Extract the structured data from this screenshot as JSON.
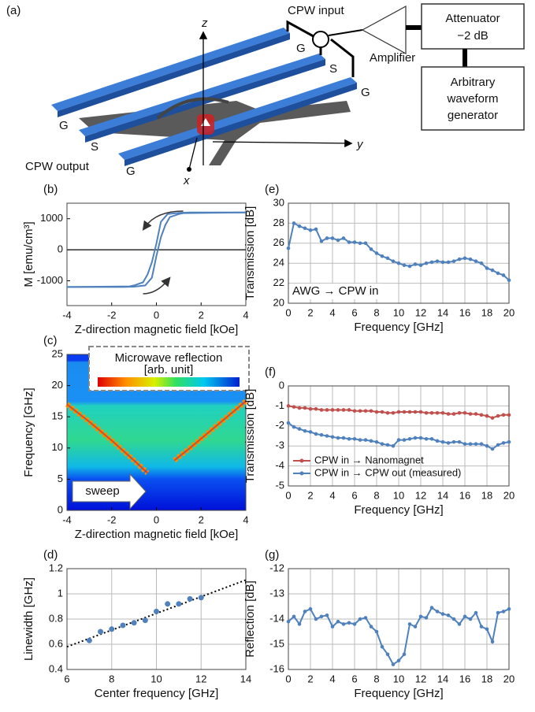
{
  "diagram": {
    "label": "(a)",
    "cpw_input": "CPW input",
    "attenuator": "Attenuator",
    "attenuation": "−2 dB",
    "amplifier": "Amplifier",
    "awg": [
      "Arbitrary",
      "waveform",
      "generator"
    ],
    "line_labels_right": [
      "G",
      "S",
      "G"
    ],
    "line_labels_left": [
      "G",
      "S",
      "G"
    ],
    "cpw_output": "CPW output",
    "axis_z": "z",
    "axis_y": "y",
    "axis_x": "x"
  },
  "chart_data": [
    {
      "label": "(b)",
      "type": "line",
      "xlabel": "Z-direction magnetic field  [kOe]",
      "ylabel": "M [emu/cm³]",
      "xlim": [
        -4,
        4
      ],
      "ylim": [
        -1800,
        1500
      ],
      "xticks": [
        -4,
        -2,
        0,
        2,
        4
      ],
      "yticks": [
        -1000,
        0,
        1000
      ],
      "grid": false,
      "markers": false,
      "series": [
        {
          "color": "#4f81bd",
          "x": [
            4,
            1.5,
            1,
            0.5,
            0.2,
            0,
            -0.2,
            -0.4,
            -0.6,
            -1,
            -1.2,
            -4
          ],
          "values": [
            1200,
            1200,
            1190,
            1150,
            900,
            200,
            -400,
            -800,
            -1050,
            -1150,
            -1180,
            -1200
          ]
        },
        {
          "color": "#4f81bd",
          "x": [
            -4,
            -1.5,
            -1,
            -0.5,
            -0.2,
            0,
            0.2,
            0.4,
            0.6,
            1,
            1.2,
            4
          ],
          "values": [
            -1200,
            -1200,
            -1190,
            -1150,
            -900,
            -200,
            400,
            800,
            1050,
            1150,
            1180,
            1200
          ]
        }
      ]
    },
    {
      "label": "(c)",
      "type": "heatmap",
      "xlabel": "Z-direction magnetic field  [kOe]",
      "ylabel": "Frequency [GHz]",
      "xlim": [
        -4,
        4
      ],
      "ylim": [
        0,
        25
      ],
      "xticks": [
        -4,
        -2,
        0,
        2,
        4
      ],
      "yticks": [
        0,
        5,
        10,
        15,
        20,
        25
      ],
      "colorbar_title": "Microwave reflection",
      "colorbar_unit": "[arb. unit]",
      "annotation": "sweep",
      "series": [
        {
          "color": "#ff8c00",
          "x": [
            -4,
            -3,
            -2,
            -1,
            -0.4
          ],
          "values": [
            17,
            14.2,
            11.2,
            8,
            6
          ]
        },
        {
          "color": "#ff8c00",
          "x": [
            0.8,
            1.5,
            2,
            3,
            4
          ],
          "values": [
            8,
            10,
            11.5,
            14.5,
            17.5
          ]
        }
      ]
    },
    {
      "label": "(d)",
      "type": "scatter",
      "xlabel": "Center frequency  [GHz]",
      "ylabel": "Linewidth [GHz]",
      "xlim": [
        6,
        14
      ],
      "ylim": [
        0.4,
        1.2
      ],
      "xticks": [
        6,
        8,
        10,
        12,
        14
      ],
      "yticks": [
        0.4,
        0.6,
        0.8,
        1,
        1.2
      ],
      "grid": true,
      "series": [
        {
          "color": "#4f81bd",
          "x": [
            7,
            7.5,
            8,
            8.5,
            9,
            9.5,
            10,
            10.5,
            11,
            11.5,
            12
          ],
          "values": [
            0.63,
            0.7,
            0.72,
            0.75,
            0.77,
            0.79,
            0.86,
            0.92,
            0.92,
            0.96,
            0.97
          ]
        }
      ],
      "fit": {
        "color": "#000000",
        "x": [
          6,
          14
        ],
        "values": [
          0.58,
          1.11
        ]
      }
    },
    {
      "label": "(e)",
      "type": "line",
      "xlabel": "Frequency [GHz]",
      "ylabel": "Transmission [dB]",
      "xlim": [
        0,
        20
      ],
      "ylim": [
        20,
        30
      ],
      "xticks": [
        0,
        2,
        4,
        6,
        8,
        10,
        12,
        14,
        16,
        18,
        20
      ],
      "yticks": [
        20,
        22,
        24,
        26,
        28,
        30
      ],
      "grid": true,
      "markers": true,
      "annotation": "AWG → CPW in",
      "x": [
        0,
        0.5,
        1,
        1.5,
        2,
        2.5,
        3,
        3.5,
        4,
        4.5,
        5,
        5.5,
        6,
        6.5,
        7,
        7.5,
        8,
        8.5,
        9,
        9.5,
        10,
        10.5,
        11,
        11.5,
        12,
        12.5,
        13,
        13.5,
        14,
        14.5,
        15,
        15.5,
        16,
        16.5,
        17,
        17.5,
        18,
        18.5,
        19,
        19.5,
        20
      ],
      "series": [
        {
          "color": "#4f81bd",
          "values": [
            25.5,
            28,
            27.7,
            27.5,
            27.3,
            27.4,
            26.2,
            26.5,
            26.5,
            26.3,
            26.5,
            26.1,
            26.1,
            26,
            26,
            25.4,
            25,
            24.7,
            24.5,
            24.2,
            24,
            23.8,
            23.7,
            23.9,
            23.8,
            24,
            24.1,
            24.2,
            24.1,
            24.1,
            24.2,
            24.4,
            24.5,
            24.4,
            24.2,
            24,
            23.5,
            23.3,
            23,
            22.8,
            22.3
          ]
        }
      ]
    },
    {
      "label": "(f)",
      "type": "line",
      "xlabel": "Frequency [GHz]",
      "ylabel": "Transmission [dB]",
      "xlim": [
        0,
        20
      ],
      "ylim": [
        -5,
        0
      ],
      "xticks": [
        0,
        2,
        4,
        6,
        8,
        10,
        12,
        14,
        16,
        18,
        20
      ],
      "yticks": [
        -5,
        -4,
        -3,
        -2,
        -1,
        0
      ],
      "grid": true,
      "markers": true,
      "legend": "lower left",
      "x": [
        0,
        0.5,
        1,
        1.5,
        2,
        2.5,
        3,
        3.5,
        4,
        4.5,
        5,
        5.5,
        6,
        6.5,
        7,
        7.5,
        8,
        8.5,
        9,
        9.5,
        10,
        10.5,
        11,
        11.5,
        12,
        12.5,
        13,
        13.5,
        14,
        14.5,
        15,
        15.5,
        16,
        16.5,
        17,
        17.5,
        18,
        18.5,
        19,
        19.5,
        20
      ],
      "series": [
        {
          "name": "CPW in → Nanomagnet",
          "color": "#c0504d",
          "values": [
            -1,
            -1.05,
            -1.1,
            -1.1,
            -1.15,
            -1.15,
            -1.2,
            -1.2,
            -1.2,
            -1.2,
            -1.2,
            -1.2,
            -1.25,
            -1.25,
            -1.25,
            -1.25,
            -1.3,
            -1.3,
            -1.35,
            -1.35,
            -1.3,
            -1.3,
            -1.3,
            -1.3,
            -1.3,
            -1.35,
            -1.35,
            -1.35,
            -1.35,
            -1.4,
            -1.4,
            -1.35,
            -1.35,
            -1.4,
            -1.4,
            -1.45,
            -1.5,
            -1.6,
            -1.5,
            -1.45,
            -1.45
          ]
        },
        {
          "name": "CPW in → CPW out (measured)",
          "color": "#4f81bd",
          "values": [
            -1.85,
            -2.05,
            -2.15,
            -2.25,
            -2.3,
            -2.4,
            -2.45,
            -2.5,
            -2.55,
            -2.6,
            -2.6,
            -2.65,
            -2.65,
            -2.7,
            -2.7,
            -2.75,
            -2.8,
            -2.9,
            -2.95,
            -3,
            -2.7,
            -2.7,
            -2.65,
            -2.6,
            -2.6,
            -2.65,
            -2.65,
            -2.75,
            -2.8,
            -2.85,
            -2.8,
            -2.8,
            -2.9,
            -2.9,
            -2.9,
            -2.9,
            -3,
            -3.15,
            -2.95,
            -2.85,
            -2.8
          ]
        }
      ]
    },
    {
      "label": "(g)",
      "type": "line",
      "xlabel": "Frequency [GHz]",
      "ylabel": "Reflection [dB]",
      "xlim": [
        0,
        20
      ],
      "ylim": [
        -16,
        -12
      ],
      "xticks": [
        0,
        2,
        4,
        6,
        8,
        10,
        12,
        14,
        16,
        18,
        20
      ],
      "yticks": [
        -16,
        -15,
        -14,
        -13,
        -12
      ],
      "grid": true,
      "markers": true,
      "x": [
        0,
        0.5,
        1,
        1.5,
        2,
        2.5,
        3,
        3.5,
        4,
        4.5,
        5,
        5.5,
        6,
        6.5,
        7,
        7.5,
        8,
        8.5,
        9,
        9.5,
        10,
        10.5,
        11,
        11.5,
        12,
        12.5,
        13,
        13.5,
        14,
        14.5,
        15,
        15.5,
        16,
        16.5,
        17,
        17.5,
        18,
        18.5,
        19,
        19.5,
        20
      ],
      "series": [
        {
          "color": "#4f81bd",
          "values": [
            -14.1,
            -13.9,
            -14.2,
            -13.7,
            -13.6,
            -14,
            -13.9,
            -13.85,
            -14.3,
            -14.1,
            -14.2,
            -14.15,
            -14.2,
            -14,
            -13.95,
            -14.3,
            -14.5,
            -15.1,
            -15.4,
            -15.8,
            -15.65,
            -15.4,
            -14.2,
            -14.3,
            -13.9,
            -13.95,
            -13.55,
            -13.7,
            -13.8,
            -13.85,
            -14,
            -14.2,
            -13.9,
            -14,
            -13.75,
            -14.3,
            -14.4,
            -14.9,
            -13.75,
            -13.7,
            -13.6
          ]
        }
      ]
    }
  ]
}
